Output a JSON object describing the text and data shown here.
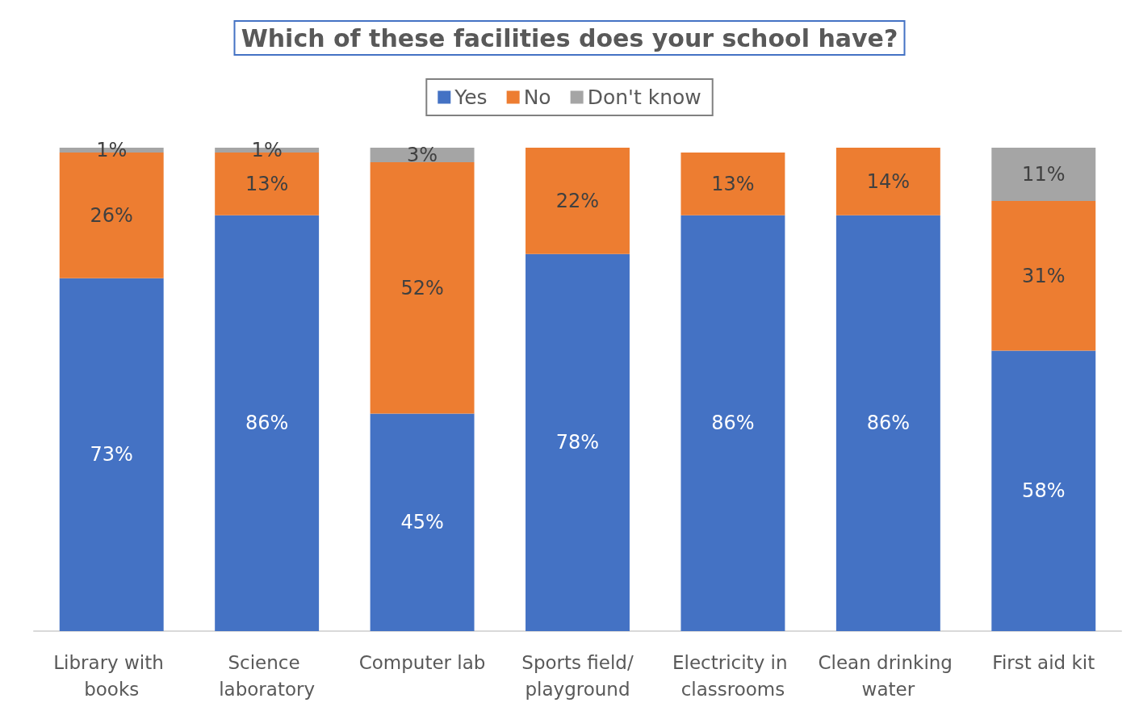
{
  "chart_data": {
    "type": "bar",
    "title": "Which of these facilities does your school have?",
    "categories": [
      "Library with books",
      "Science laboratory",
      "Computer lab",
      "Sports field/playground",
      "Electricity in classrooms",
      "Clean drinking water",
      "First aid kit"
    ],
    "stacked": true,
    "legend": "top",
    "series": [
      {
        "name": "Yes",
        "color": "#4472c4",
        "values": [
          73,
          86,
          45,
          78,
          86,
          86,
          58
        ],
        "value_labels": [
          "73%",
          "86%",
          "45%",
          "78%",
          "86%",
          "86%",
          "58%"
        ]
      },
      {
        "name": "No",
        "color": "#ed7d31",
        "values": [
          26,
          13,
          52,
          22,
          13,
          14,
          31
        ],
        "value_labels": [
          "26%",
          "13%",
          "52%",
          "22%",
          "13%",
          "14%",
          "31%"
        ]
      },
      {
        "name": "Don't know",
        "color": "#a5a5a5",
        "values": [
          1,
          1,
          3,
          null,
          null,
          null,
          11
        ],
        "value_labels": [
          "1%",
          "1%",
          "3%",
          null,
          null,
          null,
          "11%"
        ]
      }
    ]
  }
}
